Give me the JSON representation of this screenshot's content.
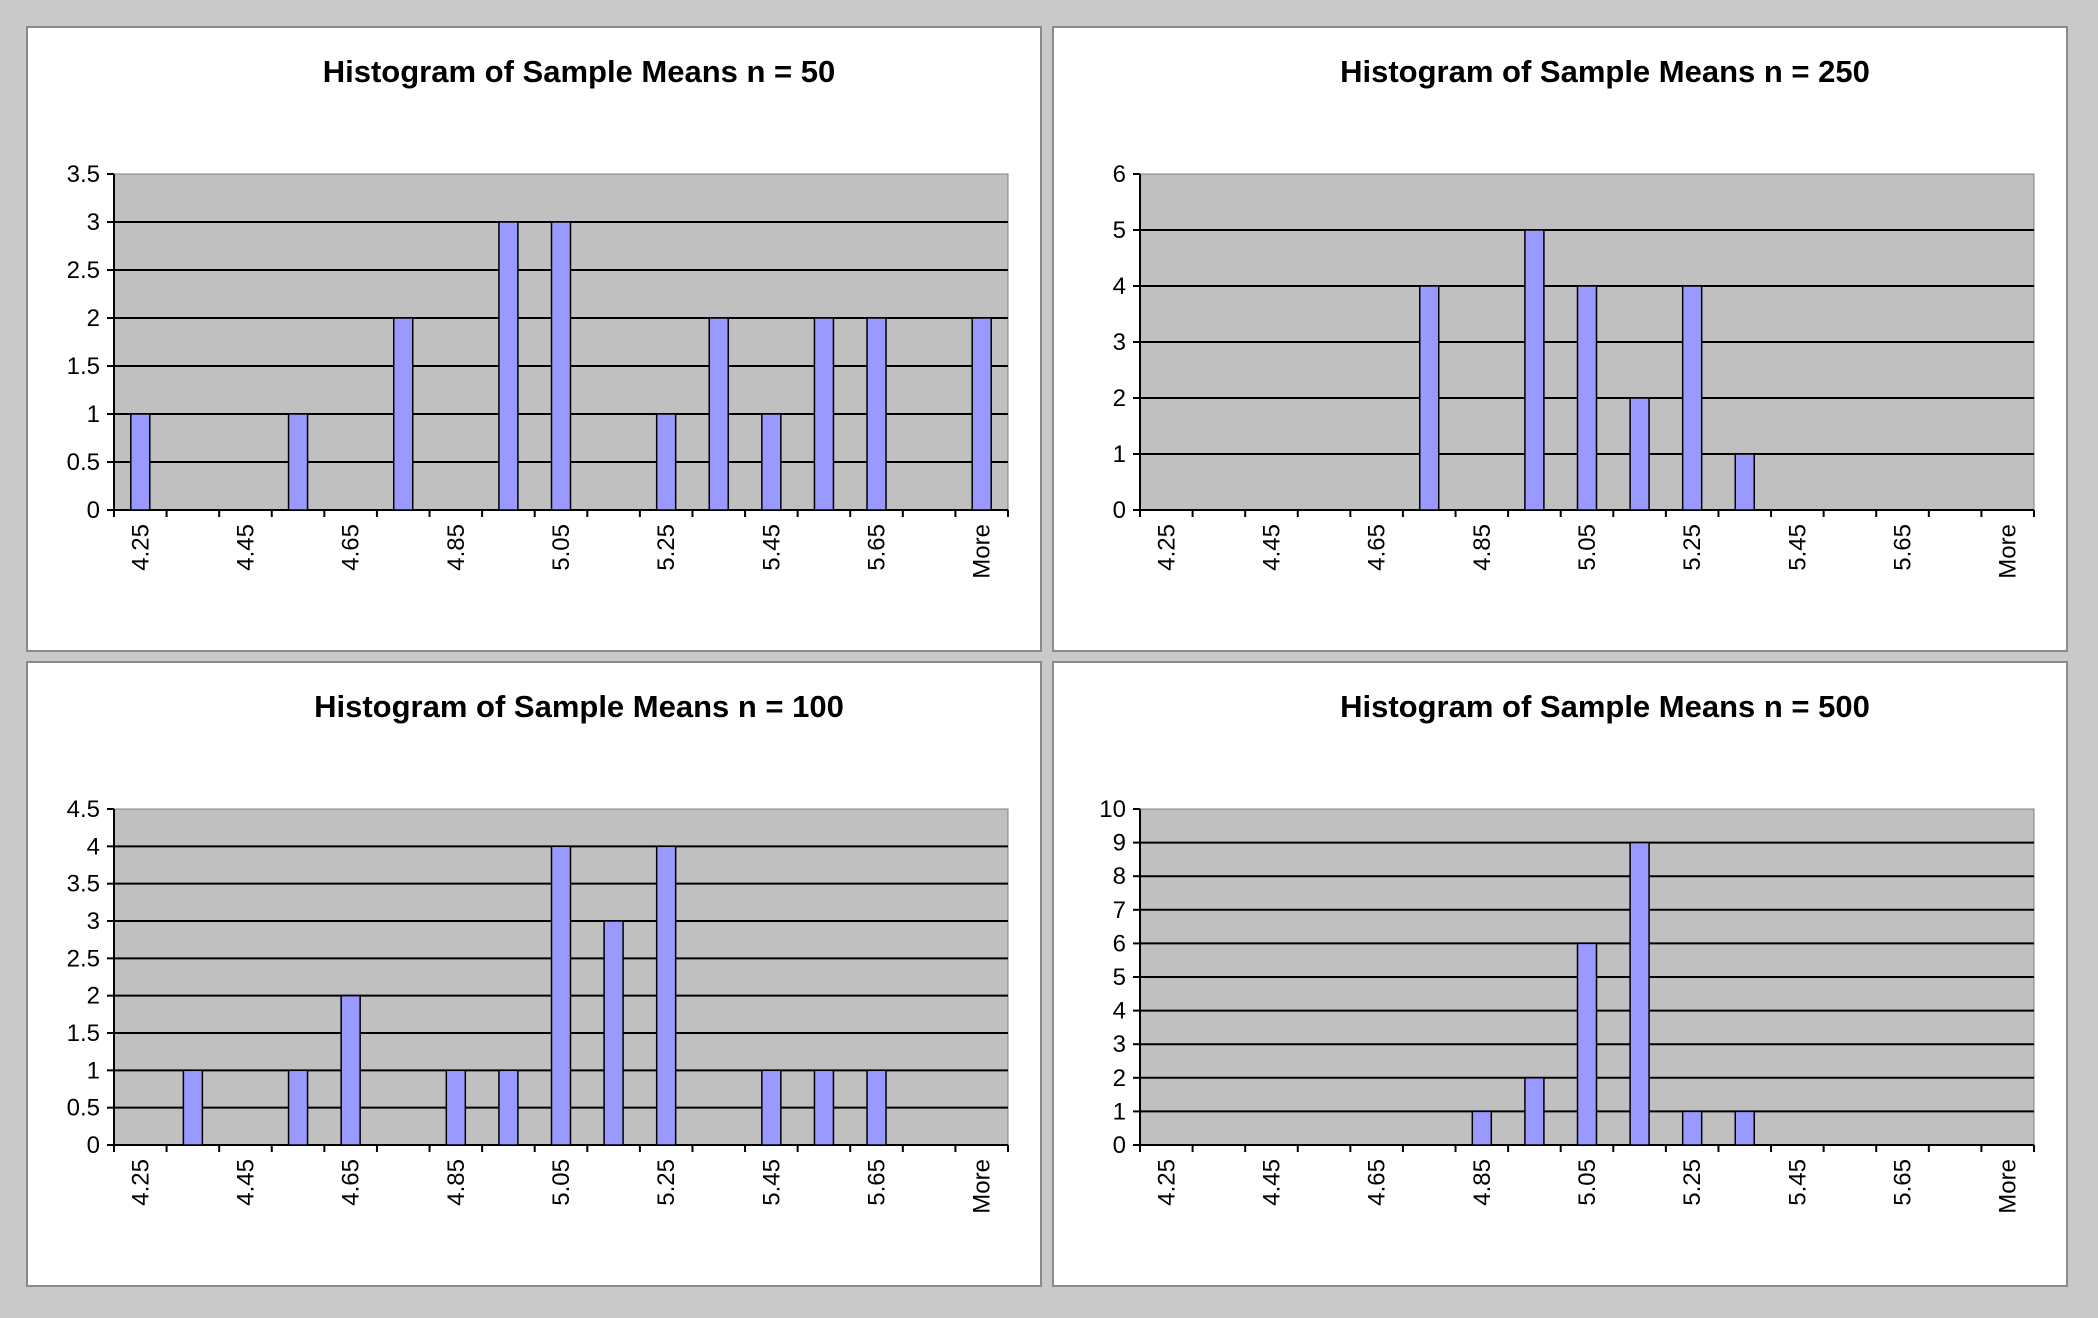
{
  "colors": {
    "plot_background": "#c0c0c0",
    "bar_fill": "#9999ff",
    "bar_stroke": "#000000",
    "gridline": "#000000",
    "page_background": "#c9c9c9"
  },
  "chart_data": [
    {
      "type": "bar",
      "title": "Histogram of Sample Means n = 50",
      "xlabel": "",
      "ylabel": "",
      "categories": [
        "4.25",
        "4.35",
        "4.45",
        "4.55",
        "4.65",
        "4.75",
        "4.85",
        "4.95",
        "5.05",
        "5.15",
        "5.25",
        "5.35",
        "5.45",
        "5.55",
        "5.65",
        "5.75",
        "More"
      ],
      "values": [
        1,
        0,
        0,
        1,
        0,
        2,
        0,
        3,
        3,
        0,
        1,
        2,
        1,
        2,
        2,
        0,
        2
      ],
      "ylim": [
        0,
        3.5
      ],
      "yticks": [
        "0",
        "0.5",
        "1",
        "1.5",
        "2",
        "2.5",
        "3",
        "3.5"
      ],
      "xtick_labels": [
        "4.25",
        "4.45",
        "4.65",
        "4.85",
        "5.05",
        "5.25",
        "5.45",
        "5.65",
        "More"
      ],
      "grid": true,
      "legend": "none"
    },
    {
      "type": "bar",
      "title": "Histogram of Sample Means n = 250",
      "xlabel": "",
      "ylabel": "",
      "categories": [
        "4.25",
        "4.35",
        "4.45",
        "4.55",
        "4.65",
        "4.75",
        "4.85",
        "4.95",
        "5.05",
        "5.15",
        "5.25",
        "5.35",
        "5.45",
        "5.55",
        "5.65",
        "5.75",
        "More"
      ],
      "values": [
        0,
        0,
        0,
        0,
        0,
        4,
        0,
        5,
        4,
        2,
        4,
        1,
        0,
        0,
        0,
        0,
        0
      ],
      "ylim": [
        0,
        6
      ],
      "yticks": [
        "0",
        "1",
        "2",
        "3",
        "4",
        "5",
        "6"
      ],
      "xtick_labels": [
        "4.25",
        "4.45",
        "4.65",
        "4.85",
        "5.05",
        "5.25",
        "5.45",
        "5.65",
        "More"
      ],
      "grid": true,
      "legend": "none"
    },
    {
      "type": "bar",
      "title": "Histogram of Sample Means n = 100",
      "xlabel": "",
      "ylabel": "",
      "categories": [
        "4.25",
        "4.35",
        "4.45",
        "4.55",
        "4.65",
        "4.75",
        "4.85",
        "4.95",
        "5.05",
        "5.15",
        "5.25",
        "5.35",
        "5.45",
        "5.55",
        "5.65",
        "5.75",
        "More"
      ],
      "values": [
        0,
        1,
        0,
        1,
        2,
        0,
        1,
        1,
        4,
        3,
        4,
        0,
        1,
        1,
        1,
        0,
        0
      ],
      "ylim": [
        0,
        4.5
      ],
      "yticks": [
        "0",
        "0.5",
        "1",
        "1.5",
        "2",
        "2.5",
        "3",
        "3.5",
        "4",
        "4.5"
      ],
      "xtick_labels": [
        "4.25",
        "4.45",
        "4.65",
        "4.85",
        "5.05",
        "5.25",
        "5.45",
        "5.65",
        "More"
      ],
      "grid": true,
      "legend": "none"
    },
    {
      "type": "bar",
      "title": "Histogram of Sample Means n = 500",
      "xlabel": "",
      "ylabel": "",
      "categories": [
        "4.25",
        "4.35",
        "4.45",
        "4.55",
        "4.65",
        "4.75",
        "4.85",
        "4.95",
        "5.05",
        "5.15",
        "5.25",
        "5.35",
        "5.45",
        "5.55",
        "5.65",
        "5.75",
        "More"
      ],
      "values": [
        0,
        0,
        0,
        0,
        0,
        0,
        1,
        2,
        6,
        9,
        1,
        1,
        0,
        0,
        0,
        0,
        0
      ],
      "ylim": [
        0,
        10
      ],
      "yticks": [
        "0",
        "1",
        "2",
        "3",
        "4",
        "5",
        "6",
        "7",
        "8",
        "9",
        "10"
      ],
      "xtick_labels": [
        "4.25",
        "4.45",
        "4.65",
        "4.85",
        "5.05",
        "5.25",
        "5.45",
        "5.65",
        "More"
      ],
      "grid": true,
      "legend": "none"
    }
  ]
}
